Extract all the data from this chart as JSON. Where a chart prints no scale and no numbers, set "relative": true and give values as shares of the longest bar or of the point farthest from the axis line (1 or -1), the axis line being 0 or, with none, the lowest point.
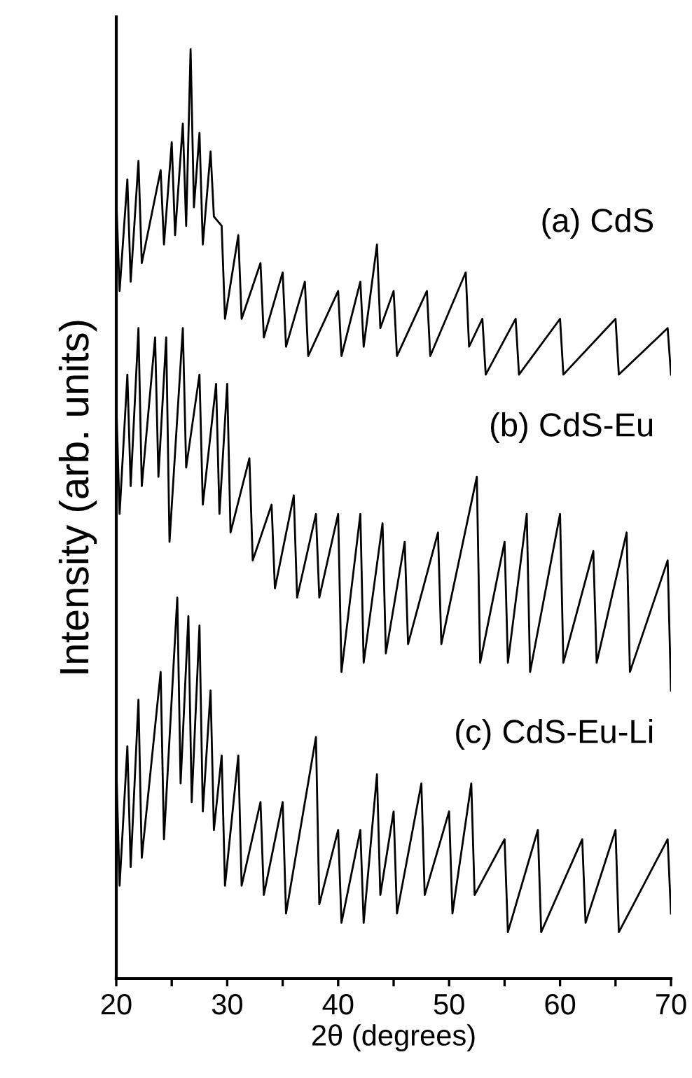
{
  "chart_data": {
    "type": "line",
    "relative": true,
    "xlabel": "2θ (degrees)",
    "ylabel": "Intensity (arb. units)",
    "xlim": [
      20,
      70
    ],
    "xticks": [
      20,
      {
        "value": 25,
        "label": null
      },
      30,
      {
        "value": 35,
        "label": null
      },
      40,
      {
        "value": 45,
        "label": null
      },
      50,
      {
        "value": 55,
        "label": null
      },
      60,
      {
        "value": 65,
        "label": null
      },
      70
    ],
    "grid": false,
    "legend": false,
    "marker": "none",
    "line_style": "solid",
    "tick_labels": "x",
    "series": [
      {
        "name": "(a) CdS",
        "color": "#000000",
        "x": [
          20,
          20.3,
          21,
          21.3,
          22,
          22.3,
          24,
          24.3,
          25,
          25.3,
          26,
          26.3,
          26.7,
          27,
          27.5,
          27.8,
          28.5,
          28.8,
          29.5,
          29.8,
          31,
          31.3,
          33,
          33.3,
          35,
          35.3,
          37,
          37.3,
          40,
          40.3,
          42,
          42.3,
          43.5,
          43.8,
          45,
          45.3,
          48,
          48.3,
          51.5,
          51.8,
          53,
          53.3,
          56,
          56.3,
          60,
          60.3,
          65,
          65.3,
          69.7,
          70
        ],
        "values": [
          0.84,
          0.74,
          0.86,
          0.75,
          0.88,
          0.77,
          0.87,
          0.79,
          0.9,
          0.8,
          0.92,
          0.81,
          1.0,
          0.83,
          0.91,
          0.79,
          0.89,
          0.82,
          0.81,
          0.71,
          0.8,
          0.71,
          0.77,
          0.69,
          0.76,
          0.68,
          0.75,
          0.67,
          0.74,
          0.67,
          0.75,
          0.68,
          0.79,
          0.7,
          0.74,
          0.67,
          0.74,
          0.67,
          0.76,
          0.68,
          0.71,
          0.65,
          0.71,
          0.65,
          0.71,
          0.65,
          0.71,
          0.65,
          0.7,
          0.65
        ]
      },
      {
        "name": "(b) CdS-Eu",
        "color": "#000000",
        "x": [
          20,
          20.3,
          21,
          21.3,
          22,
          22.3,
          23.5,
          23.8,
          24.5,
          24.8,
          26,
          26.3,
          27.5,
          27.8,
          29,
          29.3,
          30,
          30.3,
          32,
          32.3,
          34,
          34.3,
          36,
          36.3,
          38,
          38.3,
          40,
          40.3,
          42,
          42.3,
          44,
          44.3,
          46,
          46.3,
          49,
          49.3,
          52.5,
          52.8,
          55,
          55.3,
          57,
          57.3,
          60,
          60.3,
          63,
          63.3,
          66,
          66.3,
          69.7,
          70
        ],
        "values": [
          0.62,
          0.5,
          0.65,
          0.53,
          0.7,
          0.53,
          0.69,
          0.54,
          0.69,
          0.47,
          0.7,
          0.55,
          0.65,
          0.51,
          0.64,
          0.5,
          0.64,
          0.48,
          0.56,
          0.45,
          0.51,
          0.42,
          0.52,
          0.41,
          0.5,
          0.41,
          0.5,
          0.33,
          0.5,
          0.34,
          0.49,
          0.35,
          0.47,
          0.36,
          0.48,
          0.36,
          0.54,
          0.34,
          0.47,
          0.34,
          0.5,
          0.33,
          0.5,
          0.34,
          0.46,
          0.34,
          0.48,
          0.33,
          0.45,
          0.31
        ]
      },
      {
        "name": "(c) CdS-Eu-Li",
        "color": "#000000",
        "x": [
          20,
          20.3,
          21,
          21.3,
          22,
          22.3,
          24,
          24.3,
          25.5,
          25.8,
          26.5,
          26.8,
          27.5,
          27.8,
          28.5,
          28.8,
          29.5,
          29.8,
          31,
          31.3,
          33,
          33.3,
          35,
          35.3,
          38,
          38.3,
          40,
          40.3,
          42,
          42.3,
          43.5,
          43.8,
          45,
          45.3,
          47.5,
          47.8,
          50,
          50.3,
          52,
          52.3,
          55,
          55.3,
          58,
          58.3,
          62,
          62.3,
          65,
          65.3,
          69.7,
          70
        ],
        "values": [
          0.23,
          0.1,
          0.25,
          0.12,
          0.3,
          0.13,
          0.33,
          0.15,
          0.41,
          0.21,
          0.39,
          0.19,
          0.38,
          0.18,
          0.31,
          0.16,
          0.24,
          0.1,
          0.24,
          0.1,
          0.19,
          0.09,
          0.19,
          0.07,
          0.26,
          0.08,
          0.16,
          0.06,
          0.16,
          0.06,
          0.22,
          0.09,
          0.18,
          0.07,
          0.21,
          0.09,
          0.18,
          0.07,
          0.21,
          0.09,
          0.15,
          0.05,
          0.16,
          0.05,
          0.15,
          0.06,
          0.16,
          0.05,
          0.15,
          0.07
        ]
      }
    ]
  }
}
